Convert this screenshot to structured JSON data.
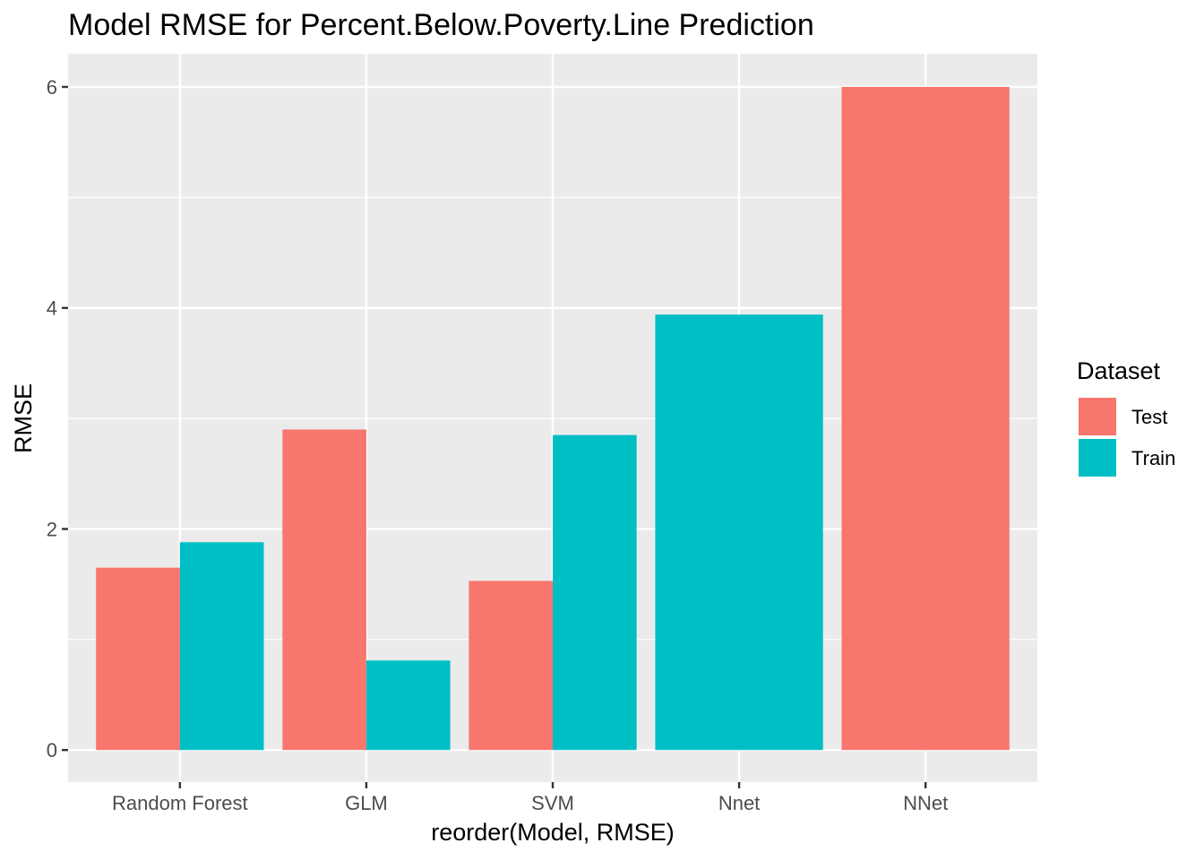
{
  "chart_data": {
    "type": "bar",
    "title": "Model RMSE for Percent.Below.Poverty.Line Prediction",
    "xlabel": "reorder(Model, RMSE)",
    "ylabel": "RMSE",
    "categories": [
      "Random Forest",
      "GLM",
      "SVM",
      "Nnet",
      "NNet"
    ],
    "series": [
      {
        "name": "Test",
        "color": "#F8766D",
        "values": [
          1.65,
          2.9,
          1.53,
          null,
          6.0
        ]
      },
      {
        "name": "Train",
        "color": "#00BFC4",
        "values": [
          1.88,
          0.81,
          2.85,
          3.94,
          null
        ]
      }
    ],
    "ylim": [
      -0.29,
      6.3
    ],
    "yticks": [
      0,
      2,
      4,
      6
    ],
    "yticks_minor": [
      1,
      3,
      5
    ],
    "grid": true,
    "legend": {
      "title": "Dataset",
      "position": "right",
      "entries": [
        "Test",
        "Train"
      ]
    },
    "panel_background": "#EBEBEB",
    "gridline_color": "#FFFFFF"
  }
}
